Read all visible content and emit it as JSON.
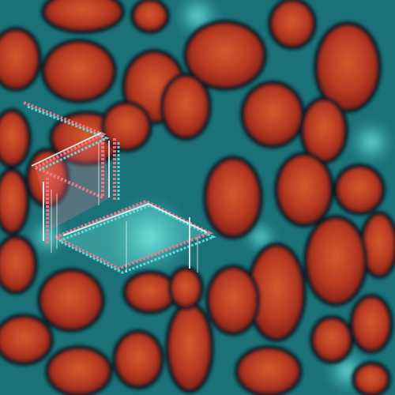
{
  "artwork": {
    "style": "glitch abstract",
    "palette": {
      "background": "#0b1c22",
      "network": "#2aa6ac",
      "network_glow": "#5fe3e0",
      "cell_dark": "#7a1a14",
      "cell_mid": "#b83a22",
      "cell_light": "#d45a2e",
      "outline": "#f07a8c",
      "outline_highlight": "#e8f8f4"
    },
    "icons": [
      "wireframe-cube-icon"
    ]
  }
}
